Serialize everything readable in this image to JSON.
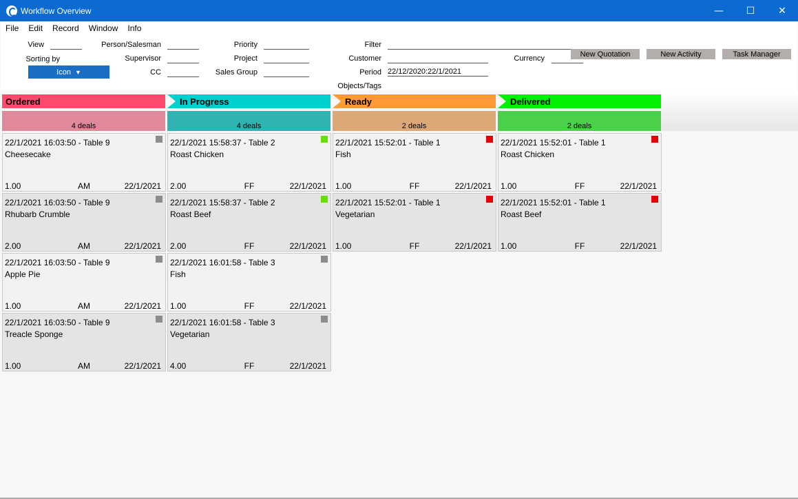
{
  "window": {
    "title": "Workflow Overview",
    "minimize": "—",
    "maximize": "☐",
    "close": "✕"
  },
  "menu": [
    "File",
    "Edit",
    "Record",
    "Window",
    "Info"
  ],
  "header": {
    "view_label": "View",
    "sorting_label": "Sorting by",
    "sorting_value": "Icon",
    "person_label": "Person/Salesman",
    "supervisor_label": "Supervisor",
    "cc_label": "CC",
    "priority_label": "Priority",
    "project_label": "Project",
    "salesgroup_label": "Sales Group",
    "filter_label": "Filter",
    "customer_label": "Customer",
    "period_label": "Period",
    "period_value": "22/12/2020:22/1/2021",
    "objects_label": "Objects/Tags",
    "currency_label": "Currency",
    "btn_new_quotation": "New Quotation",
    "btn_new_activity": "New Activity",
    "btn_task_manager": "Task Manager"
  },
  "columns": [
    {
      "title": "Ordered",
      "summary": "4 deals",
      "header_color": "#ff4a6e",
      "summary_color": "#e0899b",
      "cards": [
        {
          "head": "22/1/2021 16:03:50 - Table 9",
          "item": "Cheesecake",
          "qty": "1.00",
          "person": "AM",
          "date": "22/1/2021",
          "status_color": "#8c8c8c"
        },
        {
          "head": "22/1/2021 16:03:50 - Table 9",
          "item": "Rhubarb Crumble",
          "qty": "2.00",
          "person": "AM",
          "date": "22/1/2021",
          "status_color": "#8c8c8c"
        },
        {
          "head": "22/1/2021 16:03:50 - Table 9",
          "item": "Apple Pie",
          "qty": "1.00",
          "person": "AM",
          "date": "22/1/2021",
          "status_color": "#8c8c8c"
        },
        {
          "head": "22/1/2021 16:03:50 - Table 9",
          "item": "Treacle Sponge",
          "qty": "1.00",
          "person": "AM",
          "date": "22/1/2021",
          "status_color": "#8c8c8c"
        }
      ]
    },
    {
      "title": "In Progress",
      "summary": "4 deals",
      "header_color": "#00cfcf",
      "summary_color": "#2fb3b3",
      "cards": [
        {
          "head": "22/1/2021 15:58:37 - Table 2",
          "item": "Roast Chicken",
          "qty": "2.00",
          "person": "FF",
          "date": "22/1/2021",
          "status_color": "#66e000"
        },
        {
          "head": "22/1/2021 15:58:37 - Table 2",
          "item": "Roast Beef",
          "qty": "2.00",
          "person": "FF",
          "date": "22/1/2021",
          "status_color": "#66e000"
        },
        {
          "head": "22/1/2021 16:01:58 - Table 3",
          "item": "Fish",
          "qty": "1.00",
          "person": "FF",
          "date": "22/1/2021",
          "status_color": "#8c8c8c"
        },
        {
          "head": "22/1/2021 16:01:58 - Table 3",
          "item": "Vegetarian",
          "qty": "4.00",
          "person": "FF",
          "date": "22/1/2021",
          "status_color": "#8c8c8c"
        }
      ]
    },
    {
      "title": "Ready",
      "summary": "2 deals",
      "header_color": "#ff9a34",
      "summary_color": "#dca878",
      "cards": [
        {
          "head": "22/1/2021 15:52:01 - Table 1",
          "item": "Fish",
          "qty": "1.00",
          "person": "FF",
          "date": "22/1/2021",
          "status_color": "#e00000"
        },
        {
          "head": "22/1/2021 15:52:01 - Table 1",
          "item": "Vegetarian",
          "qty": "1.00",
          "person": "FF",
          "date": "22/1/2021",
          "status_color": "#e00000"
        }
      ]
    },
    {
      "title": "Delivered",
      "summary": "2 deals",
      "header_color": "#00f000",
      "summary_color": "#4bd04b",
      "cards": [
        {
          "head": "22/1/2021 15:52:01 - Table 1",
          "item": "Roast Chicken",
          "qty": "1.00",
          "person": "FF",
          "date": "22/1/2021",
          "status_color": "#e00000"
        },
        {
          "head": "22/1/2021 15:52:01 - Table 1",
          "item": "Roast Beef",
          "qty": "1.00",
          "person": "FF",
          "date": "22/1/2021",
          "status_color": "#e00000"
        }
      ]
    }
  ]
}
